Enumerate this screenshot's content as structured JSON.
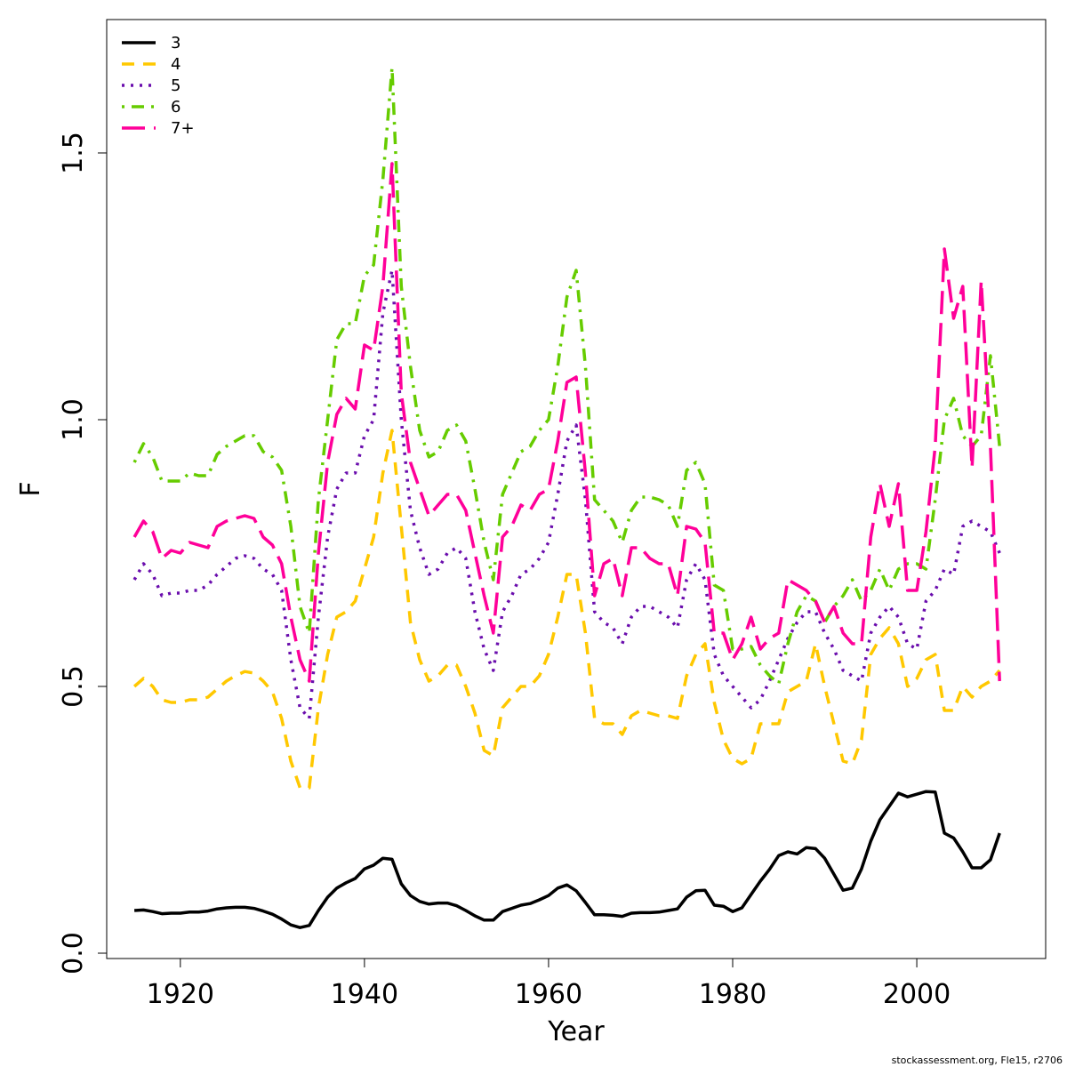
{
  "chart_data": {
    "type": "line",
    "title": "",
    "xlabel": "Year",
    "ylabel": "F",
    "xlim": [
      1912,
      2014
    ],
    "ylim": [
      -0.01,
      1.75
    ],
    "xticks": [
      1920,
      1940,
      1960,
      1980,
      2000
    ],
    "yticks": [
      0.0,
      0.5,
      1.0,
      1.5
    ],
    "ytick_labels": [
      "0.0",
      "0.5",
      "1.0",
      "1.5"
    ],
    "grid": false,
    "legend_position": "top-left",
    "x": [
      1915,
      1916,
      1917,
      1918,
      1919,
      1920,
      1921,
      1922,
      1923,
      1924,
      1925,
      1926,
      1927,
      1928,
      1929,
      1930,
      1931,
      1932,
      1933,
      1934,
      1935,
      1936,
      1937,
      1938,
      1939,
      1940,
      1941,
      1942,
      1943,
      1944,
      1945,
      1946,
      1947,
      1948,
      1949,
      1950,
      1951,
      1952,
      1953,
      1954,
      1955,
      1956,
      1957,
      1958,
      1959,
      1960,
      1961,
      1962,
      1963,
      1964,
      1965,
      1966,
      1967,
      1968,
      1969,
      1970,
      1971,
      1972,
      1973,
      1974,
      1975,
      1976,
      1977,
      1978,
      1979,
      1980,
      1981,
      1982,
      1983,
      1984,
      1985,
      1986,
      1987,
      1988,
      1989,
      1990,
      1991,
      1992,
      1993,
      1994,
      1995,
      1996,
      1997,
      1998,
      1999,
      2000,
      2001,
      2002,
      2003,
      2004,
      2005,
      2006,
      2007,
      2008,
      2009
    ],
    "series": [
      {
        "name": "3",
        "color": "#000000",
        "dash": "solid",
        "width": 3.5,
        "values": [
          0.08,
          0.081,
          0.078,
          0.074,
          0.075,
          0.075,
          0.077,
          0.077,
          0.079,
          0.083,
          0.085,
          0.086,
          0.086,
          0.084,
          0.079,
          0.073,
          0.064,
          0.053,
          0.048,
          0.052,
          0.08,
          0.105,
          0.122,
          0.132,
          0.14,
          0.158,
          0.165,
          0.178,
          0.176,
          0.13,
          0.108,
          0.097,
          0.092,
          0.094,
          0.094,
          0.089,
          0.08,
          0.07,
          0.062,
          0.062,
          0.078,
          0.084,
          0.09,
          0.093,
          0.1,
          0.108,
          0.122,
          0.128,
          0.117,
          0.095,
          0.072,
          0.072,
          0.071,
          0.069,
          0.075,
          0.076,
          0.076,
          0.077,
          0.08,
          0.083,
          0.105,
          0.117,
          0.118,
          0.09,
          0.088,
          0.078,
          0.085,
          0.11,
          0.135,
          0.157,
          0.183,
          0.19,
          0.186,
          0.198,
          0.196,
          0.178,
          0.148,
          0.118,
          0.122,
          0.158,
          0.21,
          0.25,
          0.275,
          0.3,
          0.293,
          0.298,
          0.303,
          0.302,
          0.225,
          0.216,
          0.19,
          0.16,
          0.16,
          0.175,
          0.225
        ]
      },
      {
        "name": "4",
        "color": "#ffc800",
        "dash": "dashed",
        "width": 3.5,
        "values": [
          0.5,
          0.515,
          0.5,
          0.475,
          0.47,
          0.47,
          0.475,
          0.475,
          0.48,
          0.495,
          0.51,
          0.52,
          0.528,
          0.525,
          0.51,
          0.49,
          0.44,
          0.36,
          0.31,
          0.31,
          0.46,
          0.56,
          0.63,
          0.64,
          0.66,
          0.72,
          0.78,
          0.9,
          0.98,
          0.8,
          0.62,
          0.55,
          0.51,
          0.52,
          0.54,
          0.54,
          0.5,
          0.45,
          0.38,
          0.37,
          0.46,
          0.48,
          0.5,
          0.5,
          0.52,
          0.56,
          0.63,
          0.71,
          0.71,
          0.6,
          0.44,
          0.43,
          0.43,
          0.41,
          0.445,
          0.455,
          0.45,
          0.445,
          0.445,
          0.44,
          0.52,
          0.56,
          0.58,
          0.47,
          0.4,
          0.365,
          0.355,
          0.365,
          0.43,
          0.43,
          0.43,
          0.49,
          0.5,
          0.51,
          0.58,
          0.5,
          0.43,
          0.36,
          0.355,
          0.4,
          0.56,
          0.59,
          0.61,
          0.58,
          0.5,
          0.515,
          0.55,
          0.56,
          0.455,
          0.455,
          0.5,
          0.48,
          0.5,
          0.51,
          0.53
        ]
      },
      {
        "name": "5",
        "color": "#6a0dad",
        "dash": "dotted",
        "width": 3.5,
        "values": [
          0.7,
          0.73,
          0.71,
          0.67,
          0.675,
          0.675,
          0.68,
          0.68,
          0.69,
          0.71,
          0.725,
          0.74,
          0.745,
          0.74,
          0.72,
          0.71,
          0.68,
          0.55,
          0.46,
          0.44,
          0.63,
          0.78,
          0.87,
          0.9,
          0.9,
          0.97,
          1.0,
          1.2,
          1.28,
          1.0,
          0.83,
          0.76,
          0.71,
          0.72,
          0.75,
          0.76,
          0.74,
          0.64,
          0.57,
          0.53,
          0.64,
          0.67,
          0.71,
          0.72,
          0.74,
          0.77,
          0.86,
          0.96,
          0.99,
          0.85,
          0.64,
          0.62,
          0.61,
          0.58,
          0.63,
          0.65,
          0.65,
          0.64,
          0.63,
          0.61,
          0.7,
          0.73,
          0.7,
          0.56,
          0.52,
          0.5,
          0.48,
          0.46,
          0.475,
          0.51,
          0.55,
          0.59,
          0.62,
          0.64,
          0.64,
          0.6,
          0.57,
          0.53,
          0.52,
          0.51,
          0.6,
          0.63,
          0.65,
          0.63,
          0.58,
          0.57,
          0.66,
          0.68,
          0.72,
          0.71,
          0.8,
          0.81,
          0.8,
          0.79,
          0.75
        ]
      },
      {
        "name": "6",
        "color": "#66cc00",
        "dash": "dashdot",
        "width": 3.5,
        "values": [
          0.92,
          0.955,
          0.93,
          0.885,
          0.885,
          0.885,
          0.9,
          0.895,
          0.895,
          0.935,
          0.95,
          0.96,
          0.97,
          0.97,
          0.94,
          0.93,
          0.905,
          0.8,
          0.65,
          0.6,
          0.85,
          1.0,
          1.15,
          1.18,
          1.18,
          1.27,
          1.29,
          1.45,
          1.66,
          1.25,
          1.1,
          0.98,
          0.93,
          0.94,
          0.98,
          0.99,
          0.96,
          0.87,
          0.77,
          0.7,
          0.86,
          0.9,
          0.94,
          0.95,
          0.98,
          1.0,
          1.1,
          1.23,
          1.28,
          1.1,
          0.85,
          0.83,
          0.81,
          0.77,
          0.83,
          0.855,
          0.855,
          0.85,
          0.84,
          0.8,
          0.905,
          0.92,
          0.88,
          0.69,
          0.68,
          0.57,
          0.57,
          0.575,
          0.54,
          0.52,
          0.505,
          0.58,
          0.64,
          0.67,
          0.66,
          0.62,
          0.65,
          0.67,
          0.7,
          0.66,
          0.68,
          0.72,
          0.68,
          0.72,
          0.73,
          0.73,
          0.72,
          0.85,
          1.0,
          1.04,
          0.97,
          0.95,
          0.97,
          1.12,
          0.95
        ]
      },
      {
        "name": "7+",
        "color": "#ff0099",
        "dash": "longdash",
        "width": 3.5,
        "values": [
          0.78,
          0.81,
          0.79,
          0.74,
          0.755,
          0.75,
          0.77,
          0.765,
          0.76,
          0.8,
          0.81,
          0.815,
          0.82,
          0.815,
          0.78,
          0.765,
          0.73,
          0.63,
          0.55,
          0.51,
          0.75,
          0.92,
          1.01,
          1.04,
          1.02,
          1.14,
          1.13,
          1.25,
          1.48,
          1.05,
          0.92,
          0.87,
          0.82,
          0.84,
          0.86,
          0.86,
          0.83,
          0.75,
          0.67,
          0.6,
          0.78,
          0.8,
          0.84,
          0.83,
          0.86,
          0.87,
          0.96,
          1.07,
          1.08,
          0.9,
          0.67,
          0.73,
          0.74,
          0.67,
          0.76,
          0.76,
          0.74,
          0.73,
          0.73,
          0.67,
          0.8,
          0.795,
          0.77,
          0.6,
          0.6,
          0.55,
          0.58,
          0.63,
          0.57,
          0.59,
          0.6,
          0.7,
          0.69,
          0.68,
          0.66,
          0.62,
          0.65,
          0.6,
          0.58,
          0.58,
          0.78,
          0.88,
          0.8,
          0.88,
          0.68,
          0.68,
          0.79,
          0.95,
          1.32,
          1.19,
          1.25,
          0.91,
          1.26,
          0.95,
          0.51
        ]
      }
    ]
  },
  "credit": "stockassessment.org, Fle15, r2706"
}
